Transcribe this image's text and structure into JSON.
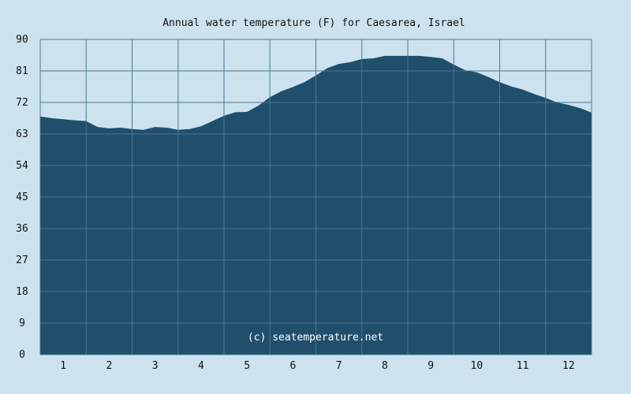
{
  "chart_data": {
    "type": "area",
    "title": "Annual water temperature (F) for Caesarea, Israel",
    "xlabel": "",
    "ylabel": "",
    "x_ticks": [
      "1",
      "2",
      "3",
      "4",
      "5",
      "6",
      "7",
      "8",
      "9",
      "10",
      "11",
      "12"
    ],
    "y_ticks": [
      "0",
      "9",
      "18",
      "27",
      "36",
      "45",
      "54",
      "63",
      "72",
      "81",
      "90"
    ],
    "xlim": [
      0.5,
      12.5
    ],
    "ylim": [
      0,
      90
    ],
    "grid": true,
    "annotation": "(c) seatemperature.net",
    "x": [
      0.5,
      0.75,
      1.0,
      1.25,
      1.5,
      1.75,
      2.0,
      2.25,
      2.5,
      2.75,
      3.0,
      3.25,
      3.5,
      3.75,
      4.0,
      4.25,
      4.5,
      4.75,
      5.0,
      5.25,
      5.5,
      5.75,
      6.0,
      6.25,
      6.5,
      6.75,
      7.0,
      7.25,
      7.5,
      7.75,
      8.0,
      8.25,
      8.5,
      8.75,
      9.0,
      9.25,
      9.5,
      9.75,
      10.0,
      10.25,
      10.5,
      10.75,
      11.0,
      11.25,
      11.5,
      11.75,
      12.0,
      12.25,
      12.5
    ],
    "series": [
      {
        "values": [
          68.0,
          67.5,
          67.2,
          66.9,
          66.7,
          65.0,
          64.6,
          64.8,
          64.4,
          64.2,
          65.0,
          64.8,
          64.2,
          64.4,
          65.2,
          66.7,
          68.2,
          69.2,
          69.3,
          71.1,
          73.5,
          75.2,
          76.4,
          77.8,
          79.7,
          81.8,
          83.0,
          83.5,
          84.4,
          84.6,
          85.3,
          85.3,
          85.3,
          85.3,
          85.0,
          84.6,
          82.8,
          81.2,
          80.6,
          79.3,
          77.8,
          76.6,
          75.7,
          74.4,
          73.3,
          72.0,
          71.3,
          70.4,
          69.1
        ]
      }
    ],
    "colors": {
      "background": "#cce3ef",
      "area_fill": "#1f4f6b",
      "grid": "#4b7690",
      "text": "#111111",
      "watermark": "#ffffff"
    }
  }
}
